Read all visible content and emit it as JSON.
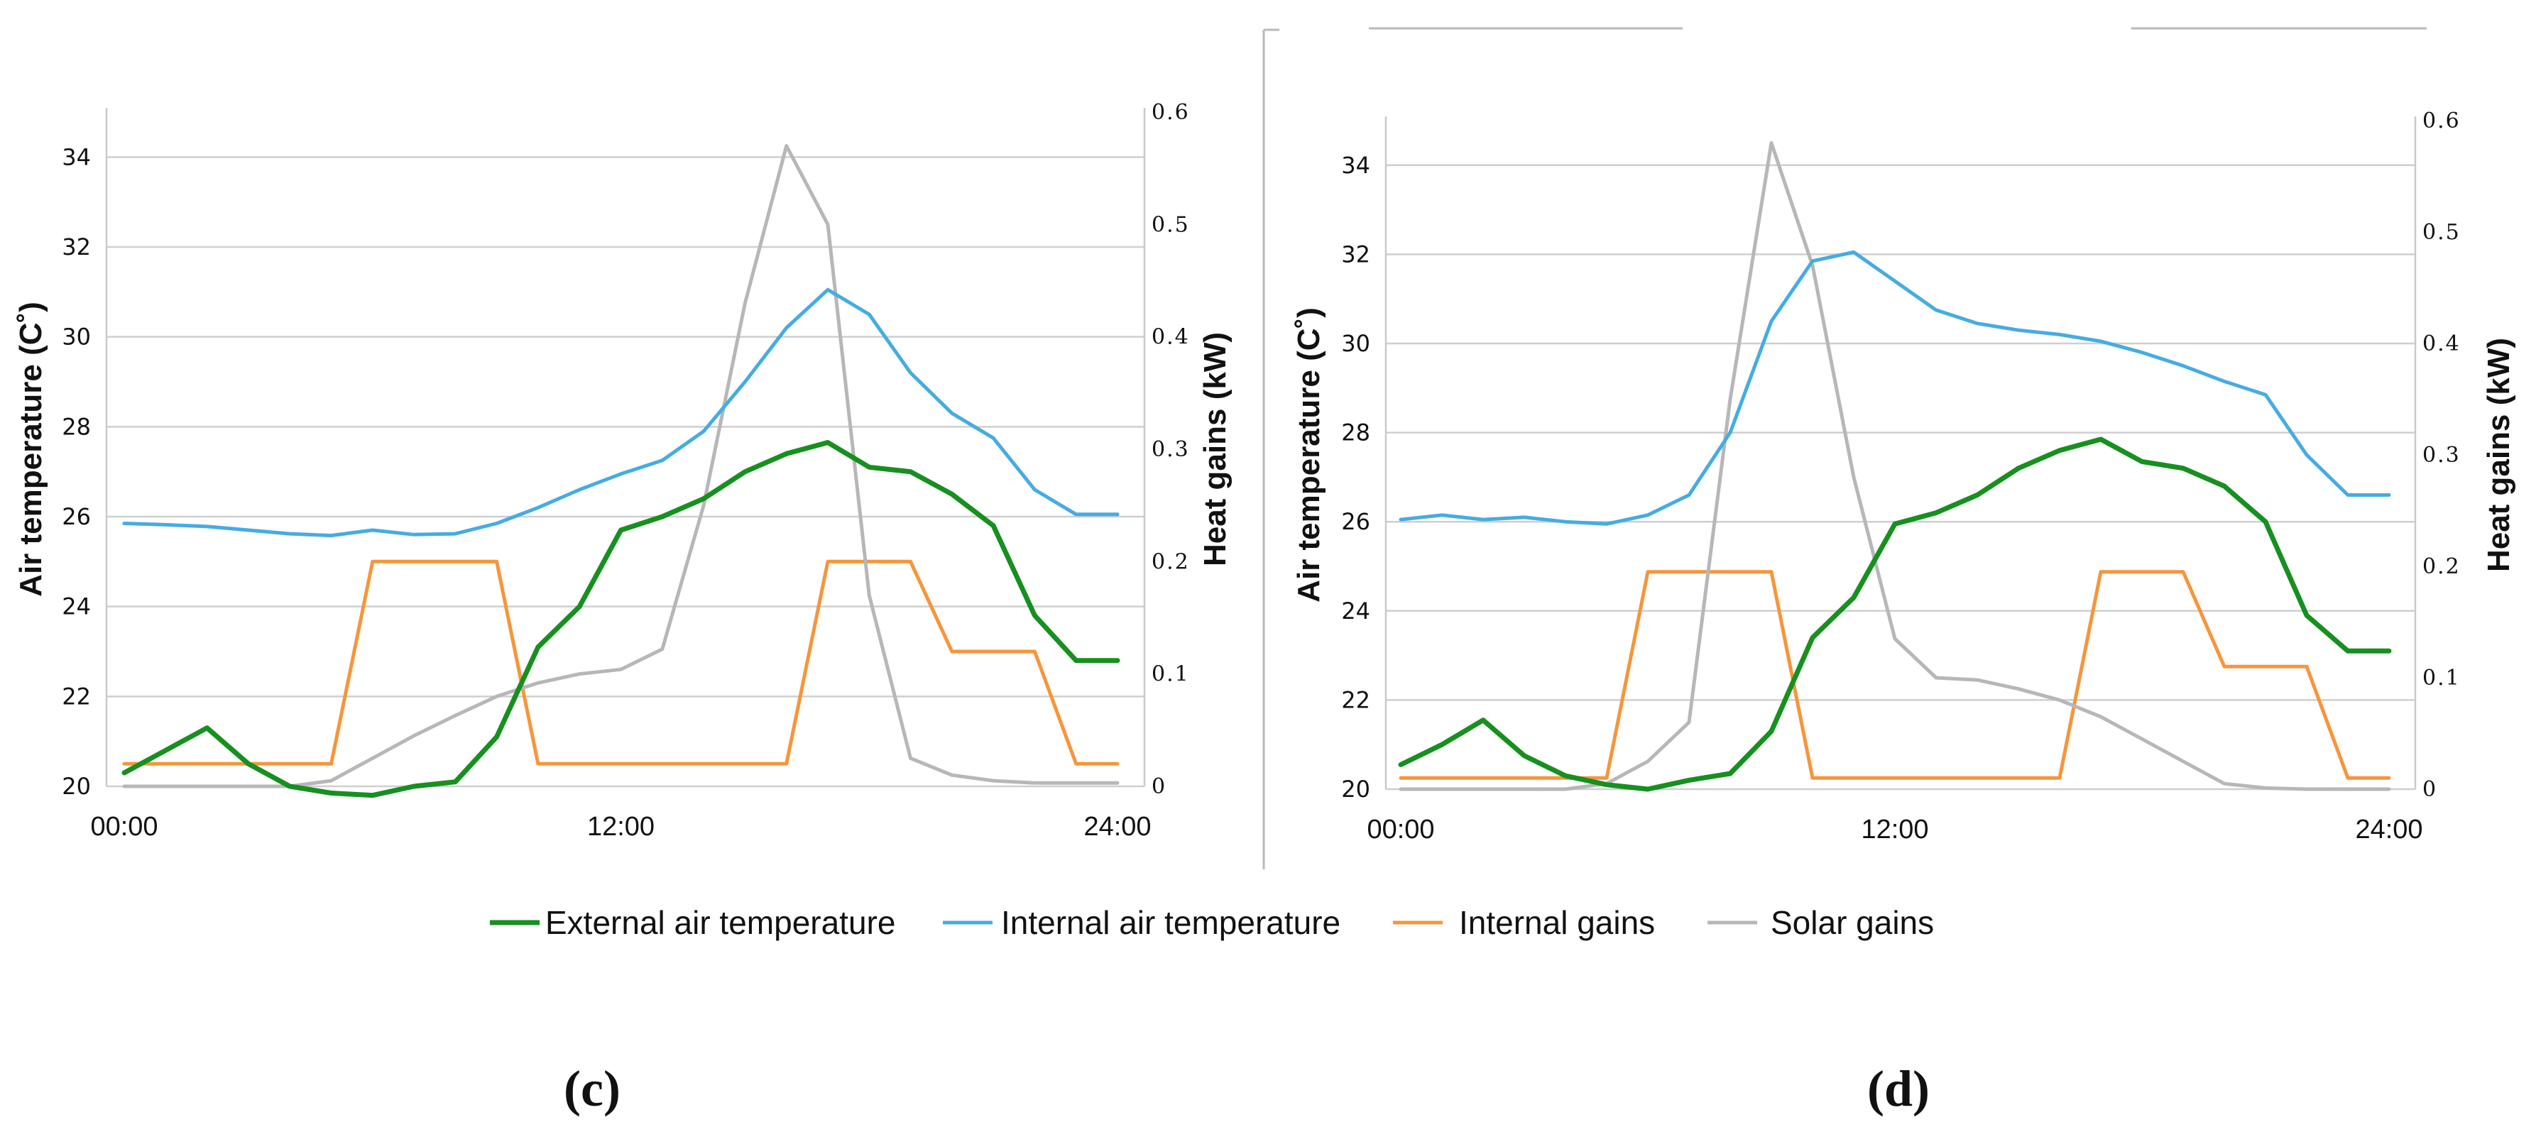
{
  "legend": [
    {
      "key": "ext",
      "label": "External air temperature",
      "color": "#16901e"
    },
    {
      "key": "int",
      "label": "Internal air temperature",
      "color": "#45ace2"
    },
    {
      "key": "gains",
      "label": "Internal gains",
      "color": "#f7953b"
    },
    {
      "key": "solar",
      "label": "Solar gains",
      "color": "#b7b7b7"
    }
  ],
  "chart_data": [
    {
      "type": "line",
      "panel_label": "(c)",
      "xlabel": "",
      "ylabel": "Air temperature (C˚)",
      "y2label": "Heat gains (kW)",
      "ylim": [
        20,
        35
      ],
      "y2lim": [
        0,
        0.6
      ],
      "yticks": [
        "20",
        "22",
        "24",
        "26",
        "28",
        "30",
        "32",
        "34"
      ],
      "y2ticks": [
        "0",
        "0.1",
        "0.2",
        "0.3",
        "0.4",
        "0.5",
        "0.6"
      ],
      "xticks": [
        "00:00",
        "12:00",
        "24:00"
      ],
      "grid": true,
      "x": [
        0,
        1,
        2,
        3,
        4,
        5,
        6,
        7,
        8,
        9,
        10,
        11,
        12,
        13,
        14,
        15,
        16,
        17,
        18,
        19,
        20,
        21,
        22,
        23,
        24
      ],
      "series": [
        {
          "key": "ext",
          "name": "External air temperature",
          "axis": "left",
          "values": [
            20.3,
            20.8,
            21.3,
            20.5,
            20.0,
            19.85,
            19.8,
            20.0,
            20.1,
            21.1,
            23.1,
            24.0,
            25.7,
            26.0,
            26.4,
            27.0,
            27.4,
            27.65,
            27.1,
            27.0,
            26.5,
            25.8,
            23.8,
            22.8,
            22.8
          ]
        },
        {
          "key": "int",
          "name": "Internal air temperature",
          "axis": "left",
          "values": [
            25.85,
            25.82,
            25.78,
            25.7,
            25.62,
            25.58,
            25.7,
            25.6,
            25.62,
            25.85,
            26.2,
            26.6,
            26.95,
            27.25,
            27.9,
            29.0,
            30.2,
            31.05,
            30.5,
            29.2,
            28.3,
            27.75,
            26.6,
            26.05,
            26.05
          ]
        },
        {
          "key": "gains",
          "name": "Internal gains",
          "axis": "right",
          "values": [
            0.02,
            0.02,
            0.02,
            0.02,
            0.02,
            0.02,
            0.2,
            0.2,
            0.2,
            0.2,
            0.02,
            0.02,
            0.02,
            0.02,
            0.02,
            0.02,
            0.02,
            0.2,
            0.2,
            0.2,
            0.12,
            0.12,
            0.12,
            0.02,
            0.02
          ]
        },
        {
          "key": "solar",
          "name": "Solar gains",
          "axis": "right",
          "values": [
            0.0,
            0.0,
            0.0,
            0.0,
            0.0,
            0.005,
            0.025,
            0.045,
            0.063,
            0.08,
            0.092,
            0.1,
            0.104,
            0.122,
            0.25,
            0.43,
            0.57,
            0.5,
            0.17,
            0.025,
            0.01,
            0.005,
            0.003,
            0.003,
            0.003
          ]
        }
      ]
    },
    {
      "type": "line",
      "panel_label": "(d)",
      "xlabel": "",
      "ylabel": "Air temperature (C˚)",
      "y2label": "Heat gains (kW)",
      "ylim": [
        20,
        35
      ],
      "y2lim": [
        0,
        0.6
      ],
      "yticks": [
        "20",
        "22",
        "24",
        "26",
        "28",
        "30",
        "32",
        "34"
      ],
      "y2ticks": [
        "0",
        "0.1",
        "0.2",
        "0.3",
        "0.4",
        "0.5",
        "0.6"
      ],
      "xticks": [
        "00:00",
        "12:00",
        "24:00"
      ],
      "grid": true,
      "x": [
        0,
        1,
        2,
        3,
        4,
        5,
        6,
        7,
        8,
        9,
        10,
        11,
        12,
        13,
        14,
        15,
        16,
        17,
        18,
        19,
        20,
        21,
        22,
        23,
        24
      ],
      "series": [
        {
          "key": "ext",
          "name": "External air temperature",
          "axis": "left",
          "values": [
            20.55,
            21.0,
            21.55,
            20.75,
            20.3,
            20.1,
            20.0,
            20.2,
            20.35,
            21.3,
            23.4,
            24.3,
            25.95,
            26.2,
            26.6,
            27.2,
            27.6,
            27.85,
            27.35,
            27.2,
            26.8,
            26.0,
            23.9,
            23.1,
            23.1
          ]
        },
        {
          "key": "int",
          "name": "Internal air temperature",
          "axis": "left",
          "values": [
            26.05,
            26.15,
            26.05,
            26.1,
            26.0,
            25.95,
            26.15,
            26.6,
            28.0,
            30.5,
            31.85,
            32.05,
            31.4,
            30.75,
            30.45,
            30.3,
            30.2,
            30.05,
            29.8,
            29.5,
            29.15,
            28.85,
            27.5,
            26.6,
            26.6
          ]
        },
        {
          "key": "gains",
          "name": "Internal gains",
          "axis": "right",
          "values": [
            0.01,
            0.01,
            0.01,
            0.01,
            0.01,
            0.01,
            0.195,
            0.195,
            0.195,
            0.195,
            0.01,
            0.01,
            0.01,
            0.01,
            0.01,
            0.01,
            0.01,
            0.195,
            0.195,
            0.195,
            0.11,
            0.11,
            0.11,
            0.01,
            0.01
          ]
        },
        {
          "key": "solar",
          "name": "Solar gains",
          "axis": "right",
          "values": [
            0.0,
            0.0,
            0.0,
            0.0,
            0.0,
            0.005,
            0.025,
            0.06,
            0.35,
            0.58,
            0.47,
            0.28,
            0.135,
            0.1,
            0.098,
            0.09,
            0.08,
            0.065,
            0.045,
            0.025,
            0.005,
            0.001,
            0.0,
            0.0,
            0.0
          ]
        }
      ]
    }
  ]
}
